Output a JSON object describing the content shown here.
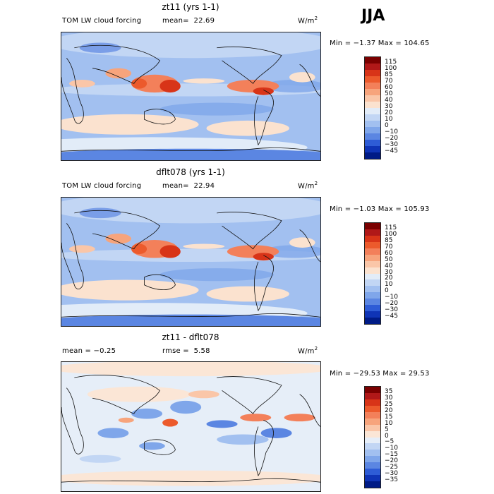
{
  "season": "JJA",
  "units_base": "W/m",
  "units_exp": "2",
  "panels": [
    {
      "title": "zt11 (yrs 1-1)",
      "left_label": "TOM LW cloud forcing",
      "stat_label": "mean=",
      "stat_value": "22.69",
      "minmax": "Min =  −1.37 Max = 104.65",
      "levels": [
        "115",
        "100",
        "85",
        "70",
        "60",
        "50",
        "40",
        "30",
        "20",
        "10",
        "0",
        "−10",
        "−20",
        "−30",
        "−45"
      ]
    },
    {
      "title": "dflt078 (yrs 1-1)",
      "left_label": "TOM LW cloud forcing",
      "stat_label": "mean=",
      "stat_value": "22.94",
      "minmax": "Min =  −1.03 Max = 105.93",
      "levels": [
        "115",
        "100",
        "85",
        "70",
        "60",
        "50",
        "40",
        "30",
        "20",
        "10",
        "0",
        "−10",
        "−20",
        "−30",
        "−45"
      ]
    },
    {
      "title": "zt11 - dflt078",
      "left_label": "mean =   −0.25",
      "stat_label": "rmse =",
      "stat_value": "5.58",
      "minmax": "Min = −29.53 Max =  29.53",
      "levels": [
        "35",
        "30",
        "25",
        "20",
        "15",
        "10",
        "5",
        "0",
        "−5",
        "−10",
        "−15",
        "−20",
        "−25",
        "−30",
        "−35"
      ]
    }
  ],
  "chart_data": [
    {
      "type": "heatmap",
      "title": "zt11 (yrs 1-1)",
      "subtitle": "TOM LW cloud forcing",
      "mean": 22.69,
      "min": -1.37,
      "max": 104.65,
      "units": "W/m2",
      "contour_levels": [
        115,
        100,
        85,
        70,
        60,
        50,
        40,
        30,
        20,
        10,
        0,
        -10,
        -20,
        -30,
        -45
      ],
      "colors": [
        "#7a0000",
        "#b01818",
        "#d83418",
        "#ec5a2c",
        "#f3805a",
        "#f7a47c",
        "#fac6a8",
        "#fbe2cf",
        "#e2ecf8",
        "#c2d6f4",
        "#a2c0f0",
        "#7fa6ea",
        "#5b86e2",
        "#2e5cd6",
        "#0f34b6",
        "#001b86"
      ]
    },
    {
      "type": "heatmap",
      "title": "dflt078 (yrs 1-1)",
      "subtitle": "TOM LW cloud forcing",
      "mean": 22.94,
      "min": -1.03,
      "max": 105.93,
      "units": "W/m2",
      "contour_levels": [
        115,
        100,
        85,
        70,
        60,
        50,
        40,
        30,
        20,
        10,
        0,
        -10,
        -20,
        -30,
        -45
      ],
      "colors": [
        "#7a0000",
        "#b01818",
        "#d83418",
        "#ec5a2c",
        "#f3805a",
        "#f7a47c",
        "#fac6a8",
        "#fbe2cf",
        "#e2ecf8",
        "#c2d6f4",
        "#a2c0f0",
        "#7fa6ea",
        "#5b86e2",
        "#2e5cd6",
        "#0f34b6",
        "#001b86"
      ]
    },
    {
      "type": "heatmap",
      "title": "zt11 - dflt078",
      "mean": -0.25,
      "rmse": 5.58,
      "min": -29.53,
      "max": 29.53,
      "units": "W/m2",
      "contour_levels": [
        35,
        30,
        25,
        20,
        15,
        10,
        5,
        0,
        -5,
        -10,
        -15,
        -20,
        -25,
        -30,
        -35
      ],
      "colors": [
        "#7a0000",
        "#b01818",
        "#d83418",
        "#ec5a2c",
        "#f3805a",
        "#f7a47c",
        "#fac6a8",
        "#fbe6d6",
        "#e6eef8",
        "#c2d6f4",
        "#a2c0f0",
        "#7fa6ea",
        "#5b86e2",
        "#2e5cd6",
        "#0f34b6",
        "#001b86"
      ]
    }
  ]
}
